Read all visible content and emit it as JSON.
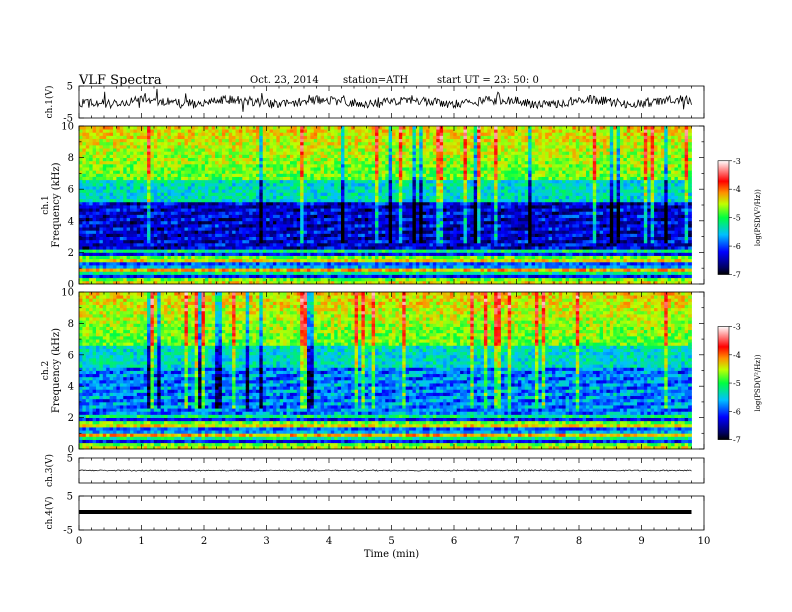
{
  "header": {
    "title": "VLF  Spectra",
    "date": "Oct. 23, 2014",
    "station": "station=ATH",
    "start": "start  UT =   23: 50: 0"
  },
  "chart_data": {
    "type": "multi-panel",
    "x_axis": {
      "label": "Time  (min)",
      "range": [
        0,
        10
      ],
      "ticks": [
        "0",
        "1",
        "2",
        "3",
        "4",
        "5",
        "6",
        "7",
        "8",
        "9",
        "10"
      ]
    },
    "data_end_min": 9.8,
    "panels": [
      {
        "kind": "waveform",
        "ylabel": "ch.1(V)",
        "yrange": [
          -5,
          5
        ],
        "yticks": [
          "5",
          "-5"
        ],
        "color": "#000000"
      },
      {
        "kind": "spectrogram",
        "ylabel": "Frequency  (kHz)",
        "channel": "ch.1",
        "yrange": [
          0,
          10
        ],
        "yticks": [
          "0",
          "2",
          "4",
          "6",
          "8",
          "10"
        ],
        "colorbar": {
          "label": "log(PSD(V²/Hz))",
          "range": [
            -7,
            -3
          ],
          "ticks": [
            "-3",
            "-4",
            "-5",
            "-6",
            "-7"
          ]
        }
      },
      {
        "kind": "spectrogram",
        "ylabel": "Frequency  (kHz)",
        "channel": "ch.2",
        "yrange": [
          0,
          10
        ],
        "yticks": [
          "0",
          "2",
          "4",
          "6",
          "8",
          "10"
        ],
        "colorbar": {
          "label": "log(PSD(V²/Hz))",
          "range": [
            -7,
            -3
          ],
          "ticks": [
            "-3",
            "-4",
            "-5",
            "-6",
            "-7"
          ]
        }
      },
      {
        "kind": "waveform",
        "ylabel": "ch.3(V)",
        "yrange": [
          -5,
          5
        ],
        "yticks": [
          "5"
        ],
        "color": "#000000"
      },
      {
        "kind": "waveform",
        "ylabel": "ch.4(V)",
        "yrange": [
          -5,
          5
        ],
        "yticks": [
          "5",
          "-5"
        ],
        "color": "#000000"
      }
    ]
  }
}
